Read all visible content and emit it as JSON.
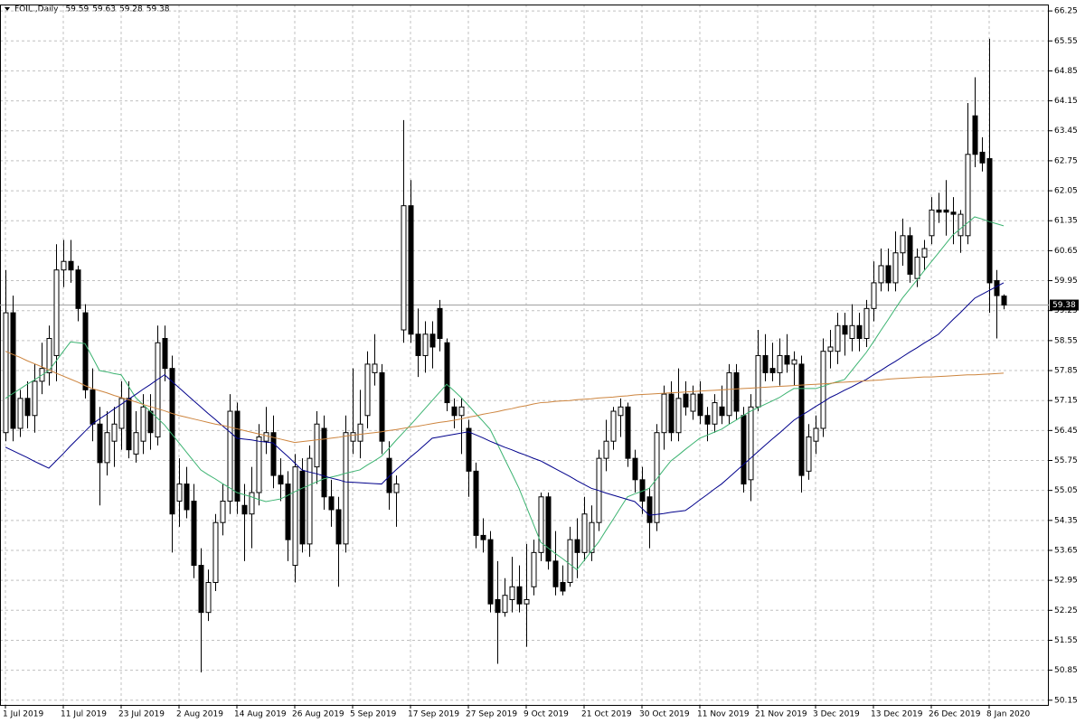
{
  "chart_data": {
    "type": "candlestick",
    "title": "FOIL.,Daily",
    "grid": true,
    "up_color": "#ffffff",
    "down_color": "#000000",
    "ylim": [
      50.04,
      66.4
    ],
    "yticks": [
      66.25,
      65.55,
      64.85,
      64.15,
      63.45,
      62.75,
      62.05,
      61.35,
      60.65,
      59.95,
      59.25,
      58.55,
      57.85,
      57.15,
      56.45,
      55.75,
      55.05,
      54.35,
      53.65,
      52.95,
      52.25,
      51.55,
      50.85,
      50.15
    ],
    "categories": [
      "1 Jul 2019",
      null,
      null,
      null,
      null,
      null,
      null,
      null,
      "11 Jul 2019",
      null,
      null,
      null,
      null,
      null,
      null,
      null,
      "23 Jul 2019",
      null,
      null,
      null,
      null,
      null,
      null,
      null,
      "2 Aug 2019",
      null,
      null,
      null,
      null,
      null,
      null,
      null,
      "14 Aug 2019",
      null,
      null,
      null,
      null,
      null,
      null,
      null,
      "26 Aug 2019",
      null,
      null,
      null,
      null,
      null,
      null,
      null,
      "5 Sep 2019",
      null,
      null,
      null,
      null,
      null,
      null,
      null,
      "17 Sep 2019",
      null,
      null,
      null,
      null,
      null,
      null,
      null,
      "27 Sep 2019",
      null,
      null,
      null,
      null,
      null,
      null,
      null,
      "9 Oct 2019",
      null,
      null,
      null,
      null,
      null,
      null,
      null,
      "21 Oct 2019",
      null,
      null,
      null,
      null,
      null,
      null,
      null,
      "30 Oct 2019",
      null,
      null,
      null,
      null,
      null,
      null,
      null,
      "11 Nov 2019",
      null,
      null,
      null,
      null,
      null,
      null,
      null,
      "21 Nov 2019",
      null,
      null,
      null,
      null,
      null,
      null,
      null,
      "3 Dec 2019",
      null,
      null,
      null,
      null,
      null,
      null,
      null,
      "13 Dec 2019",
      null,
      null,
      null,
      null,
      null,
      null,
      null,
      "26 Dec 2019",
      null,
      null,
      null,
      null,
      null,
      null,
      null,
      "8 Jan 2020",
      null,
      null
    ],
    "candles": [
      [
        56.4,
        60.2,
        56.2,
        59.2
      ],
      [
        59.2,
        59.6,
        56.2,
        56.5
      ],
      [
        56.5,
        57.4,
        56.3,
        57.2
      ],
      [
        57.2,
        57.6,
        56.5,
        56.8
      ],
      [
        56.8,
        58.0,
        56.4,
        57.6
      ],
      [
        57.6,
        58.5,
        57.3,
        57.9
      ],
      [
        57.8,
        58.9,
        57.5,
        58.6
      ],
      [
        58.2,
        60.8,
        57.6,
        60.2
      ],
      [
        60.2,
        60.9,
        59.8,
        60.4
      ],
      [
        60.4,
        60.9,
        59.9,
        60.2
      ],
      [
        60.2,
        60.3,
        59.0,
        59.3
      ],
      [
        59.2,
        59.4,
        57.2,
        57.4
      ],
      [
        57.4,
        57.9,
        56.2,
        56.6
      ],
      [
        56.6,
        57.0,
        54.7,
        55.7
      ],
      [
        55.7,
        56.9,
        55.4,
        56.4
      ],
      [
        56.2,
        57.0,
        55.6,
        56.6
      ],
      [
        56.5,
        57.6,
        56.0,
        57.2
      ],
      [
        57.2,
        57.6,
        55.8,
        56.0
      ],
      [
        55.9,
        56.9,
        55.7,
        56.4
      ],
      [
        56.2,
        57.3,
        55.9,
        57.0
      ],
      [
        56.9,
        57.3,
        56.0,
        56.4
      ],
      [
        56.3,
        58.9,
        56.1,
        58.5
      ],
      [
        58.6,
        58.9,
        57.6,
        57.9
      ],
      [
        57.9,
        58.2,
        53.6,
        54.5
      ],
      [
        54.8,
        55.8,
        54.2,
        55.2
      ],
      [
        55.2,
        55.6,
        54.4,
        54.6
      ],
      [
        54.8,
        55.2,
        53.0,
        53.3
      ],
      [
        53.3,
        53.7,
        50.8,
        52.2
      ],
      [
        52.2,
        53.2,
        52.0,
        52.9
      ],
      [
        52.9,
        54.5,
        52.7,
        54.3
      ],
      [
        54.3,
        55.2,
        54.0,
        54.8
      ],
      [
        54.8,
        57.3,
        54.5,
        56.9
      ],
      [
        56.9,
        57.1,
        54.5,
        54.8
      ],
      [
        54.7,
        55.2,
        53.4,
        54.5
      ],
      [
        54.5,
        55.6,
        53.7,
        55.0
      ],
      [
        55.0,
        56.6,
        54.7,
        56.3
      ],
      [
        56.2,
        57.0,
        55.9,
        56.4
      ],
      [
        56.4,
        56.8,
        55.1,
        55.4
      ],
      [
        55.4,
        55.8,
        54.8,
        55.2
      ],
      [
        55.2,
        55.5,
        53.4,
        53.9
      ],
      [
        53.3,
        55.9,
        52.9,
        55.6
      ],
      [
        55.5,
        55.8,
        53.6,
        53.8
      ],
      [
        53.8,
        56.1,
        53.5,
        55.8
      ],
      [
        55.6,
        56.9,
        55.2,
        56.6
      ],
      [
        56.5,
        56.8,
        54.6,
        54.9
      ],
      [
        54.9,
        55.3,
        54.2,
        54.6
      ],
      [
        54.6,
        54.9,
        52.8,
        53.8
      ],
      [
        53.8,
        56.8,
        53.6,
        56.4
      ],
      [
        56.2,
        57.9,
        55.9,
        56.4
      ],
      [
        56.2,
        57.4,
        55.8,
        56.6
      ],
      [
        56.8,
        58.3,
        56.5,
        58.0
      ],
      [
        57.8,
        58.7,
        57.5,
        58.0
      ],
      [
        57.8,
        58.0,
        55.9,
        56.2
      ],
      [
        55.8,
        56.2,
        54.6,
        55.0
      ],
      [
        55.0,
        55.4,
        54.2,
        55.2
      ],
      [
        58.8,
        63.7,
        58.5,
        61.7
      ],
      [
        61.7,
        62.3,
        58.5,
        58.7
      ],
      [
        58.7,
        59.3,
        57.7,
        58.2
      ],
      [
        58.2,
        59.0,
        57.8,
        58.7
      ],
      [
        58.7,
        59.0,
        57.9,
        58.4
      ],
      [
        59.3,
        59.5,
        58.3,
        58.6
      ],
      [
        58.5,
        58.6,
        56.9,
        57.1
      ],
      [
        57.0,
        57.2,
        56.5,
        56.8
      ],
      [
        56.8,
        57.2,
        55.9,
        57.0
      ],
      [
        56.5,
        56.7,
        54.9,
        55.5
      ],
      [
        55.5,
        55.7,
        53.7,
        54.0
      ],
      [
        54.0,
        54.4,
        53.6,
        53.9
      ],
      [
        53.9,
        54.1,
        52.2,
        52.4
      ],
      [
        52.5,
        53.4,
        51.0,
        52.2
      ],
      [
        52.2,
        53.0,
        52.1,
        52.6
      ],
      [
        52.5,
        53.5,
        52.2,
        52.8
      ],
      [
        52.8,
        53.3,
        52.2,
        52.4
      ],
      [
        52.4,
        53.8,
        51.4,
        52.5
      ],
      [
        52.8,
        53.9,
        52.6,
        53.6
      ],
      [
        53.6,
        55.0,
        53.4,
        54.9
      ],
      [
        54.9,
        55.0,
        53.2,
        53.4
      ],
      [
        53.4,
        54.1,
        52.6,
        52.8
      ],
      [
        52.9,
        53.3,
        52.6,
        52.7
      ],
      [
        52.9,
        54.2,
        52.8,
        53.9
      ],
      [
        53.9,
        54.4,
        53.0,
        53.6
      ],
      [
        53.6,
        54.9,
        53.4,
        54.5
      ],
      [
        53.6,
        54.7,
        53.4,
        54.3
      ],
      [
        54.3,
        56.0,
        54.1,
        55.8
      ],
      [
        55.8,
        56.7,
        55.5,
        56.2
      ],
      [
        56.2,
        57.0,
        56.0,
        56.9
      ],
      [
        56.8,
        57.2,
        56.3,
        57.0
      ],
      [
        57.0,
        57.1,
        55.6,
        55.8
      ],
      [
        55.8,
        56.0,
        55.0,
        55.3
      ],
      [
        55.3,
        55.6,
        54.5,
        54.8
      ],
      [
        54.9,
        55.1,
        53.7,
        54.3
      ],
      [
        54.3,
        56.6,
        54.1,
        56.4
      ],
      [
        56.4,
        57.5,
        56.0,
        57.3
      ],
      [
        57.3,
        57.6,
        56.2,
        56.4
      ],
      [
        56.4,
        57.9,
        56.2,
        57.2
      ],
      [
        57.3,
        57.6,
        56.8,
        57.0
      ],
      [
        56.9,
        57.5,
        56.7,
        57.3
      ],
      [
        57.3,
        57.6,
        56.6,
        56.8
      ],
      [
        56.8,
        57.0,
        56.2,
        56.6
      ],
      [
        56.6,
        57.3,
        56.4,
        57.1
      ],
      [
        57.0,
        57.5,
        56.6,
        56.8
      ],
      [
        56.8,
        58.0,
        56.6,
        57.8
      ],
      [
        57.8,
        58.0,
        56.7,
        56.9
      ],
      [
        56.8,
        57.0,
        55.0,
        55.2
      ],
      [
        55.3,
        57.3,
        54.8,
        57.0
      ],
      [
        57.0,
        58.8,
        56.9,
        58.2
      ],
      [
        58.2,
        58.7,
        57.6,
        57.8
      ],
      [
        57.9,
        58.5,
        57.6,
        57.8
      ],
      [
        57.8,
        58.6,
        57.5,
        58.2
      ],
      [
        58.2,
        58.7,
        57.8,
        58.0
      ],
      [
        58.0,
        58.3,
        57.5,
        58.1
      ],
      [
        58.0,
        58.2,
        55.0,
        55.4
      ],
      [
        55.5,
        56.6,
        55.3,
        56.3
      ],
      [
        56.2,
        56.8,
        55.9,
        56.5
      ],
      [
        56.5,
        58.6,
        56.3,
        58.3
      ],
      [
        58.3,
        58.8,
        57.9,
        58.4
      ],
      [
        58.3,
        59.2,
        58.0,
        58.9
      ],
      [
        58.9,
        59.2,
        58.2,
        58.7
      ],
      [
        58.6,
        59.4,
        58.3,
        58.9
      ],
      [
        58.9,
        59.2,
        58.3,
        58.6
      ],
      [
        58.6,
        59.5,
        58.4,
        59.3
      ],
      [
        59.3,
        60.4,
        59.0,
        59.9
      ],
      [
        59.9,
        60.7,
        59.7,
        60.3
      ],
      [
        60.3,
        60.7,
        59.7,
        59.9
      ],
      [
        59.9,
        61.1,
        59.7,
        60.6
      ],
      [
        60.6,
        61.4,
        60.3,
        61.0
      ],
      [
        61.0,
        61.2,
        59.9,
        60.1
      ],
      [
        60.0,
        60.7,
        59.8,
        60.5
      ],
      [
        60.5,
        60.9,
        60.2,
        60.7
      ],
      [
        61.0,
        61.9,
        60.8,
        61.6
      ],
      [
        61.6,
        62.0,
        61.3,
        61.55
      ],
      [
        61.6,
        62.3,
        61.0,
        61.55
      ],
      [
        61.55,
        61.9,
        60.8,
        61.5
      ],
      [
        61.0,
        61.6,
        60.6,
        61.5
      ],
      [
        61.0,
        64.1,
        60.8,
        62.9
      ],
      [
        63.8,
        64.7,
        62.6,
        62.9
      ],
      [
        62.95,
        63.3,
        62.5,
        62.7
      ],
      [
        62.8,
        65.6,
        59.2,
        59.9
      ],
      [
        59.95,
        60.2,
        58.6,
        59.6
      ],
      [
        59.59,
        59.63,
        59.28,
        59.38
      ]
    ],
    "lines": [
      {
        "color": "#3cb371",
        "values": [
          57.2,
          57.31,
          57.42,
          57.53,
          57.63,
          57.74,
          57.85,
          58.07,
          58.3,
          58.52,
          58.5,
          58.48,
          58.17,
          57.85,
          57.82,
          57.78,
          57.75,
          57.49,
          57.22,
          57.06,
          56.9,
          56.74,
          56.58,
          56.37,
          56.16,
          55.95,
          55.74,
          55.53,
          55.42,
          55.32,
          55.21,
          55.11,
          55.0,
          54.95,
          54.9,
          54.84,
          54.79,
          54.82,
          54.85,
          54.93,
          55.02,
          55.1,
          55.17,
          55.25,
          55.32,
          55.36,
          55.4,
          55.45,
          55.49,
          55.53,
          55.64,
          55.74,
          55.85,
          56.03,
          56.22,
          56.4,
          56.58,
          56.77,
          56.96,
          57.15,
          57.34,
          57.53,
          57.38,
          57.22,
          57.04,
          56.85,
          56.67,
          56.48,
          56.14,
          55.79,
          55.45,
          55.1,
          54.68,
          54.26,
          53.84,
          53.71,
          53.58,
          53.46,
          53.33,
          53.2,
          53.41,
          53.63,
          53.84,
          54.11,
          54.37,
          54.64,
          54.9,
          54.97,
          55.03,
          55.1,
          55.31,
          55.53,
          55.74,
          55.87,
          56.01,
          56.14,
          56.27,
          56.34,
          56.41,
          56.48,
          56.59,
          56.69,
          56.8,
          56.9,
          56.98,
          57.06,
          57.14,
          57.22,
          57.33,
          57.43,
          57.43,
          57.43,
          57.43,
          57.48,
          57.54,
          57.59,
          57.64,
          57.85,
          58.06,
          58.27,
          58.52,
          58.78,
          59.03,
          59.29,
          59.54,
          59.75,
          59.96,
          60.18,
          60.39,
          60.6,
          60.81,
          61.02,
          61.16,
          61.3,
          61.44,
          61.39,
          61.33,
          61.28,
          61.23
        ]
      },
      {
        "color": "#00008b",
        "values": [
          56.06,
          55.98,
          55.9,
          55.82,
          55.73,
          55.65,
          55.57,
          55.74,
          55.91,
          56.09,
          56.26,
          56.43,
          56.6,
          56.72,
          56.83,
          56.95,
          57.06,
          57.18,
          57.29,
          57.41,
          57.52,
          57.64,
          57.75,
          57.6,
          57.45,
          57.3,
          57.15,
          57.0,
          56.85,
          56.71,
          56.56,
          56.42,
          56.27,
          56.25,
          56.23,
          56.2,
          56.18,
          56.16,
          56.0,
          55.85,
          55.69,
          55.53,
          55.48,
          55.44,
          55.39,
          55.34,
          55.3,
          55.25,
          55.24,
          55.23,
          55.22,
          55.21,
          55.2,
          55.37,
          55.53,
          55.68,
          55.83,
          55.97,
          56.12,
          56.27,
          56.3,
          56.33,
          56.36,
          56.39,
          56.42,
          56.35,
          56.28,
          56.2,
          56.13,
          56.06,
          56.0,
          55.93,
          55.87,
          55.8,
          55.74,
          55.65,
          55.56,
          55.47,
          55.38,
          55.28,
          55.19,
          55.1,
          55.05,
          54.99,
          54.94,
          54.89,
          54.84,
          54.79,
          54.63,
          54.47,
          54.49,
          54.51,
          54.54,
          54.56,
          54.58,
          54.7,
          54.83,
          54.95,
          55.08,
          55.2,
          55.35,
          55.5,
          55.65,
          55.8,
          55.95,
          56.1,
          56.25,
          56.39,
          56.54,
          56.69,
          56.8,
          56.9,
          57.01,
          57.11,
          57.22,
          57.3,
          57.39,
          57.47,
          57.56,
          57.64,
          57.75,
          57.85,
          57.96,
          58.06,
          58.17,
          58.28,
          58.38,
          58.49,
          58.59,
          58.7,
          58.87,
          59.04,
          59.2,
          59.37,
          59.54,
          59.63,
          59.72,
          59.81,
          59.9
        ]
      },
      {
        "color": "#cd853f",
        "values": [
          58.3,
          58.23,
          58.16,
          58.08,
          58.01,
          57.94,
          57.87,
          57.79,
          57.72,
          57.65,
          57.58,
          57.5,
          57.43,
          57.38,
          57.33,
          57.27,
          57.22,
          57.17,
          57.12,
          57.06,
          57.01,
          56.96,
          56.91,
          56.85,
          56.8,
          56.76,
          56.72,
          56.68,
          56.64,
          56.6,
          56.57,
          56.53,
          56.49,
          56.45,
          56.41,
          56.37,
          56.33,
          56.29,
          56.25,
          56.21,
          56.17,
          56.19,
          56.21,
          56.23,
          56.25,
          56.27,
          56.29,
          56.32,
          56.34,
          56.36,
          56.38,
          56.4,
          56.42,
          56.45,
          56.47,
          56.5,
          56.53,
          56.55,
          56.58,
          56.61,
          56.64,
          56.66,
          56.69,
          56.72,
          56.76,
          56.79,
          56.83,
          56.86,
          56.89,
          56.93,
          56.96,
          57.0,
          57.03,
          57.07,
          57.1,
          57.11,
          57.13,
          57.14,
          57.15,
          57.17,
          57.18,
          57.19,
          57.21,
          57.22,
          57.23,
          57.25,
          57.26,
          57.28,
          57.29,
          57.3,
          57.31,
          57.32,
          57.33,
          57.34,
          57.35,
          57.36,
          57.37,
          57.38,
          57.39,
          57.4,
          57.41,
          57.42,
          57.43,
          57.44,
          57.45,
          57.46,
          57.47,
          57.48,
          57.49,
          57.5,
          57.51,
          57.52,
          57.53,
          57.54,
          57.55,
          57.57,
          57.58,
          57.59,
          57.6,
          57.61,
          57.62,
          57.63,
          57.65,
          57.66,
          57.67,
          57.68,
          57.69,
          57.7,
          57.7,
          57.71,
          57.72,
          57.73,
          57.74,
          57.75,
          57.75,
          57.76,
          57.77,
          57.78,
          57.79
        ]
      }
    ]
  }
}
